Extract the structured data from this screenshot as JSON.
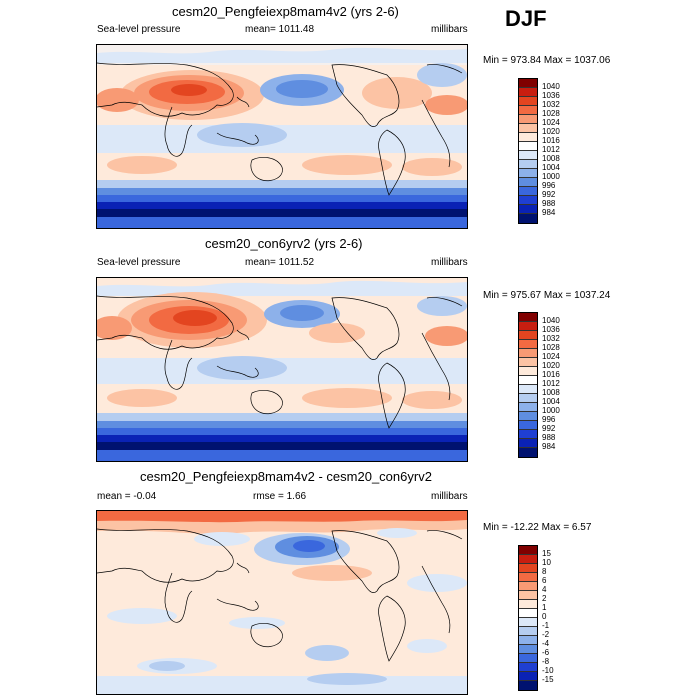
{
  "season": "DJF",
  "panels": [
    {
      "title": "cesm20_Pengfeiexp8mam4v2 (yrs 2-6)",
      "left_label": "Sea-level pressure",
      "center_label": "mean= 1011.48",
      "right_label": "millibars",
      "minmax": "Min = 973.84 Max = 1037.06",
      "colorbar_labels": [
        "1040",
        "1036",
        "1032",
        "1028",
        "1024",
        "1020",
        "1016",
        "1012",
        "1008",
        "1004",
        "1000",
        "996",
        "992",
        "988",
        "984"
      ],
      "colorbar_colors": [
        "#800000",
        "#c81e10",
        "#e34520",
        "#f26a42",
        "#f89a74",
        "#fcc3a4",
        "#feeadb",
        "#ffffff",
        "#dce8f8",
        "#b5cdf0",
        "#8db1ea",
        "#5f8ee0",
        "#3a67dd",
        "#1f3fd2",
        "#0a22b5",
        "#001270"
      ]
    },
    {
      "title": "cesm20_con6yrv2 (yrs 2-6)",
      "left_label": "Sea-level pressure",
      "center_label": "mean= 1011.52",
      "right_label": "millibars",
      "minmax": "Min = 975.67 Max = 1037.24",
      "colorbar_labels": [
        "1040",
        "1036",
        "1032",
        "1028",
        "1024",
        "1020",
        "1016",
        "1012",
        "1008",
        "1004",
        "1000",
        "996",
        "992",
        "988",
        "984"
      ],
      "colorbar_colors": [
        "#800000",
        "#c81e10",
        "#e34520",
        "#f26a42",
        "#f89a74",
        "#fcc3a4",
        "#feeadb",
        "#ffffff",
        "#dce8f8",
        "#b5cdf0",
        "#8db1ea",
        "#5f8ee0",
        "#3a67dd",
        "#1f3fd2",
        "#0a22b5",
        "#001270"
      ]
    },
    {
      "title": "cesm20_Pengfeiexp8mam4v2 - cesm20_con6yrv2",
      "left_label": "mean =  -0.04",
      "center_label": "rmse =   1.66",
      "right_label": "millibars",
      "minmax": "Min = -12.22 Max =  6.57",
      "colorbar_labels": [
        "15",
        "10",
        "8",
        "6",
        "4",
        "2",
        "1",
        "0",
        "-1",
        "-2",
        "-4",
        "-6",
        "-8",
        "-10",
        "-15"
      ],
      "colorbar_colors": [
        "#800000",
        "#c81e10",
        "#e34520",
        "#f26a42",
        "#f89a74",
        "#fcc3a4",
        "#feeadb",
        "#ffffff",
        "#dce8f8",
        "#b5cdf0",
        "#8db1ea",
        "#5f8ee0",
        "#3a67dd",
        "#1f3fd2",
        "#0a22b5",
        "#001270"
      ]
    }
  ]
}
